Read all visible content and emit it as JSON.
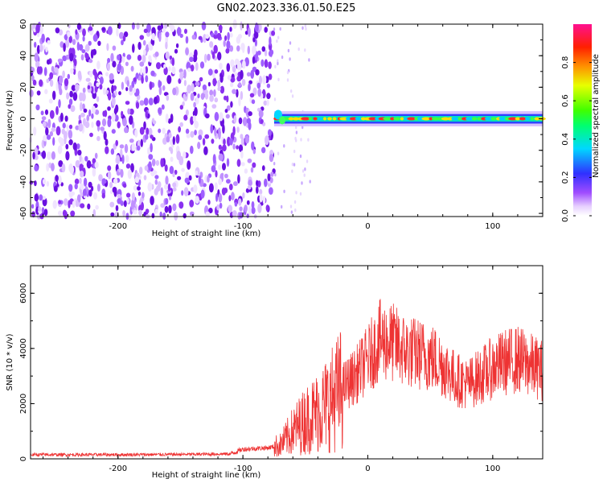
{
  "title": "GN02.2023.336.01.50.E25",
  "colors": {
    "line": "#ee3333",
    "background": "#ffffff",
    "axes": "#000000"
  },
  "chart_data": [
    {
      "type": "heatmap",
      "title": "GN02.2023.336.01.50.E25",
      "xlabel": "Height of straight line (km)",
      "ylabel": "Frequency (Hz)",
      "xlim": [
        -270,
        140
      ],
      "ylim": [
        -62,
        60
      ],
      "xticks": [
        -200,
        -100,
        0,
        100
      ],
      "yticks": [
        -60,
        -40,
        -20,
        0,
        20,
        40,
        60
      ],
      "colorbar": {
        "label": "Normalized spectral amplitude",
        "range": [
          0,
          1
        ],
        "ticks": [
          0.0,
          0.2,
          0.4,
          0.6,
          0.8
        ],
        "colormap": "rainbow (white → purple → blue → cyan → green → yellow → red → magenta)"
      },
      "description_features": {
        "noise_region_x": [
          -270,
          -75
        ],
        "noise_level": "0.3-0.5 normalized, spread across all frequencies",
        "signal_band_x": [
          -75,
          140
        ],
        "signal_band_center_hz": 0,
        "signal_band_halfwidth_hz": 3
      }
    },
    {
      "type": "line",
      "xlabel": "Height of straight line (km)",
      "ylabel": "SNR (10 * v/v)",
      "xlim": [
        -270,
        140
      ],
      "ylim": [
        0,
        7000
      ],
      "xticks": [
        -200,
        -100,
        0,
        100
      ],
      "yticks": [
        0,
        2000,
        4000,
        6000
      ],
      "series": [
        {
          "x": [
            -270,
            -250,
            -200,
            -150,
            -110,
            -100,
            -80,
            -70,
            -60,
            -50,
            -40,
            -30,
            -20,
            -10,
            0,
            10,
            20,
            30,
            40,
            50,
            60,
            70,
            80,
            90,
            100,
            110,
            120,
            130,
            140
          ],
          "y": [
            150,
            150,
            150,
            160,
            180,
            350,
            400,
            500,
            1000,
            1400,
            1700,
            2100,
            2600,
            3000,
            3600,
            4300,
            4200,
            3900,
            3800,
            3700,
            3400,
            2900,
            2700,
            3000,
            3300,
            3500,
            3600,
            3400,
            3200
          ]
        }
      ]
    }
  ]
}
